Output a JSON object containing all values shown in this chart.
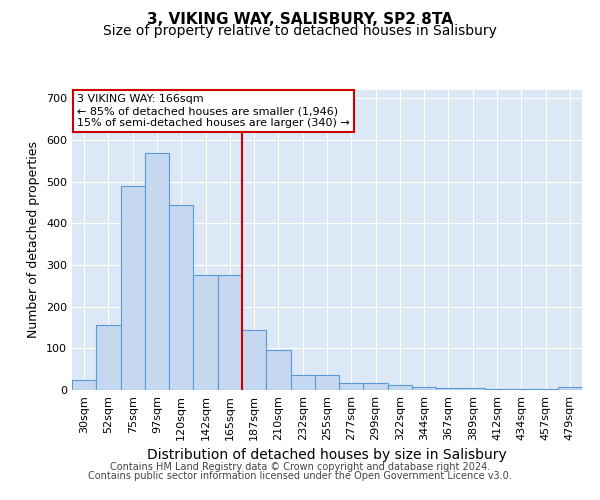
{
  "title": "3, VIKING WAY, SALISBURY, SP2 8TA",
  "subtitle": "Size of property relative to detached houses in Salisbury",
  "xlabel": "Distribution of detached houses by size in Salisbury",
  "ylabel": "Number of detached properties",
  "categories": [
    "30sqm",
    "52sqm",
    "75sqm",
    "97sqm",
    "120sqm",
    "142sqm",
    "165sqm",
    "187sqm",
    "210sqm",
    "232sqm",
    "255sqm",
    "277sqm",
    "299sqm",
    "322sqm",
    "344sqm",
    "367sqm",
    "389sqm",
    "412sqm",
    "434sqm",
    "457sqm",
    "479sqm"
  ],
  "values": [
    25,
    155,
    490,
    570,
    445,
    275,
    275,
    145,
    95,
    35,
    35,
    18,
    18,
    11,
    8,
    5,
    5,
    2,
    2,
    2,
    8
  ],
  "bar_color": "#c5d8f0",
  "bar_edge_color": "#5b9bd5",
  "vline_color": "#cc0000",
  "vline_x_index": 6,
  "annotation_line1": "3 VIKING WAY: 166sqm",
  "annotation_line2": "← 85% of detached houses are smaller (1,946)",
  "annotation_line3": "15% of semi-detached houses are larger (340) →",
  "annotation_box_color": "#ffffff",
  "annotation_box_edge_color": "#cc0000",
  "ylim": [
    0,
    720
  ],
  "yticks": [
    0,
    100,
    200,
    300,
    400,
    500,
    600,
    700
  ],
  "background_color": "#dce8f5",
  "footer_line1": "Contains HM Land Registry data © Crown copyright and database right 2024.",
  "footer_line2": "Contains public sector information licensed under the Open Government Licence v3.0.",
  "title_fontsize": 11,
  "subtitle_fontsize": 10,
  "xlabel_fontsize": 10,
  "ylabel_fontsize": 9,
  "tick_fontsize": 8,
  "annotation_fontsize": 8,
  "footer_fontsize": 7
}
